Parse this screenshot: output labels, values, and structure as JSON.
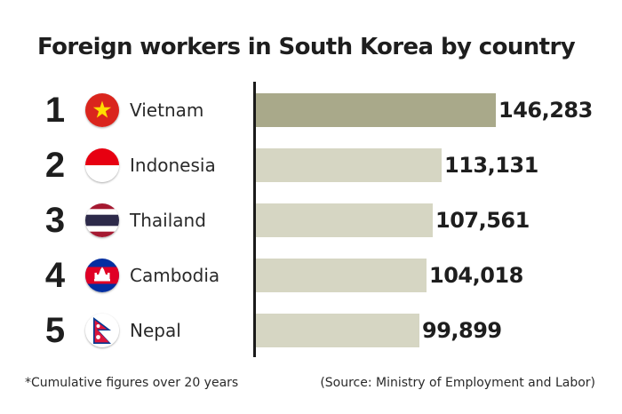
{
  "chart_data": {
    "type": "bar",
    "orientation": "horizontal",
    "title": "Foreign workers in South Korea by country",
    "ranks": [
      "1",
      "2",
      "3",
      "4",
      "5"
    ],
    "categories": [
      "Vietnam",
      "Indonesia",
      "Thailand",
      "Cambodia",
      "Nepal"
    ],
    "values": [
      146283,
      113131,
      107561,
      104018,
      99899
    ],
    "value_labels": [
      "146,283",
      "113,131",
      "107,561",
      "104,018",
      "99,899"
    ],
    "flag_icons": [
      "vietnam-flag-icon",
      "indonesia-flag-icon",
      "thailand-flag-icon",
      "cambodia-flag-icon",
      "nepal-flag-icon"
    ],
    "xlim": [
      0,
      146283
    ],
    "bar_colors": [
      "#a9a98a",
      "#d6d6c3",
      "#d6d6c3",
      "#d6d6c3",
      "#d6d6c3"
    ],
    "grid": false,
    "legend": "none"
  },
  "footnote": "*Cumulative figures over 20 years",
  "source": "(Source: Ministry of Employment and Labor)"
}
